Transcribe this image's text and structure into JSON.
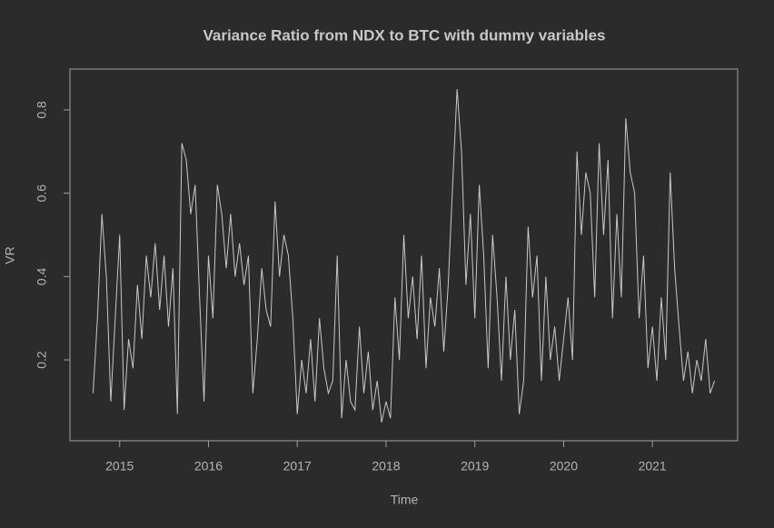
{
  "chart_data": {
    "type": "line",
    "title": "Variance Ratio from NDX to BTC with dummy variables",
    "x_label": "Time",
    "y_label": "VR",
    "x": [
      2014.7,
      2014.75,
      2014.8,
      2014.85,
      2014.9,
      2014.95,
      2015.0,
      2015.05,
      2015.1,
      2015.15,
      2015.2,
      2015.25,
      2015.3,
      2015.35,
      2015.4,
      2015.45,
      2015.5,
      2015.55,
      2015.6,
      2015.65,
      2015.7,
      2015.75,
      2015.8,
      2015.85,
      2015.9,
      2015.95,
      2016.0,
      2016.05,
      2016.1,
      2016.15,
      2016.2,
      2016.25,
      2016.3,
      2016.35,
      2016.4,
      2016.45,
      2016.5,
      2016.55,
      2016.6,
      2016.65,
      2016.7,
      2016.75,
      2016.8,
      2016.85,
      2016.9,
      2016.95,
      2017.0,
      2017.05,
      2017.1,
      2017.15,
      2017.2,
      2017.25,
      2017.3,
      2017.35,
      2017.4,
      2017.45,
      2017.5,
      2017.55,
      2017.6,
      2017.65,
      2017.7,
      2017.75,
      2017.8,
      2017.85,
      2017.9,
      2017.95,
      2018.0,
      2018.05,
      2018.1,
      2018.15,
      2018.2,
      2018.25,
      2018.3,
      2018.35,
      2018.4,
      2018.45,
      2018.5,
      2018.55,
      2018.6,
      2018.65,
      2018.7,
      2018.75,
      2018.8,
      2018.85,
      2018.9,
      2018.95,
      2019.0,
      2019.05,
      2019.1,
      2019.15,
      2019.2,
      2019.25,
      2019.3,
      2019.35,
      2019.4,
      2019.45,
      2019.5,
      2019.55,
      2019.6,
      2019.65,
      2019.7,
      2019.75,
      2019.8,
      2019.85,
      2019.9,
      2019.95,
      2020.0,
      2020.05,
      2020.1,
      2020.15,
      2020.2,
      2020.25,
      2020.3,
      2020.35,
      2020.4,
      2020.45,
      2020.5,
      2020.55,
      2020.6,
      2020.65,
      2020.7,
      2020.75,
      2020.8,
      2020.85,
      2020.9,
      2020.95,
      2021.0,
      2021.05,
      2021.1,
      2021.15,
      2021.2,
      2021.25,
      2021.3,
      2021.35,
      2021.4,
      2021.45,
      2021.5,
      2021.55,
      2021.6,
      2021.65,
      2021.7
    ],
    "series": [
      {
        "name": "VR",
        "color": "#c8c8c8",
        "values": [
          0.12,
          0.3,
          0.55,
          0.4,
          0.1,
          0.3,
          0.5,
          0.08,
          0.25,
          0.18,
          0.38,
          0.25,
          0.45,
          0.35,
          0.48,
          0.32,
          0.45,
          0.28,
          0.42,
          0.07,
          0.72,
          0.68,
          0.55,
          0.62,
          0.35,
          0.1,
          0.45,
          0.3,
          0.62,
          0.55,
          0.42,
          0.55,
          0.4,
          0.48,
          0.38,
          0.45,
          0.12,
          0.25,
          0.42,
          0.32,
          0.28,
          0.58,
          0.4,
          0.5,
          0.45,
          0.3,
          0.07,
          0.2,
          0.12,
          0.25,
          0.1,
          0.3,
          0.18,
          0.12,
          0.15,
          0.45,
          0.06,
          0.2,
          0.1,
          0.08,
          0.28,
          0.12,
          0.22,
          0.08,
          0.15,
          0.05,
          0.1,
          0.06,
          0.35,
          0.2,
          0.5,
          0.3,
          0.4,
          0.25,
          0.45,
          0.18,
          0.35,
          0.28,
          0.42,
          0.22,
          0.38,
          0.62,
          0.85,
          0.7,
          0.38,
          0.55,
          0.3,
          0.62,
          0.45,
          0.18,
          0.5,
          0.35,
          0.15,
          0.4,
          0.2,
          0.32,
          0.07,
          0.15,
          0.52,
          0.35,
          0.45,
          0.15,
          0.4,
          0.2,
          0.28,
          0.15,
          0.25,
          0.35,
          0.2,
          0.7,
          0.5,
          0.65,
          0.6,
          0.35,
          0.72,
          0.5,
          0.68,
          0.3,
          0.55,
          0.35,
          0.78,
          0.65,
          0.6,
          0.3,
          0.45,
          0.18,
          0.28,
          0.15,
          0.35,
          0.2,
          0.65,
          0.42,
          0.28,
          0.15,
          0.22,
          0.12,
          0.2,
          0.15,
          0.25,
          0.12,
          0.15
        ]
      }
    ],
    "xlim": [
      2014.44,
      2021.96
    ],
    "ylim": [
      0.006,
      0.898
    ],
    "xticks": [
      2015,
      2016,
      2017,
      2018,
      2019,
      2020,
      2021
    ],
    "yticks": [
      0.2,
      0.4,
      0.6,
      0.8
    ]
  }
}
